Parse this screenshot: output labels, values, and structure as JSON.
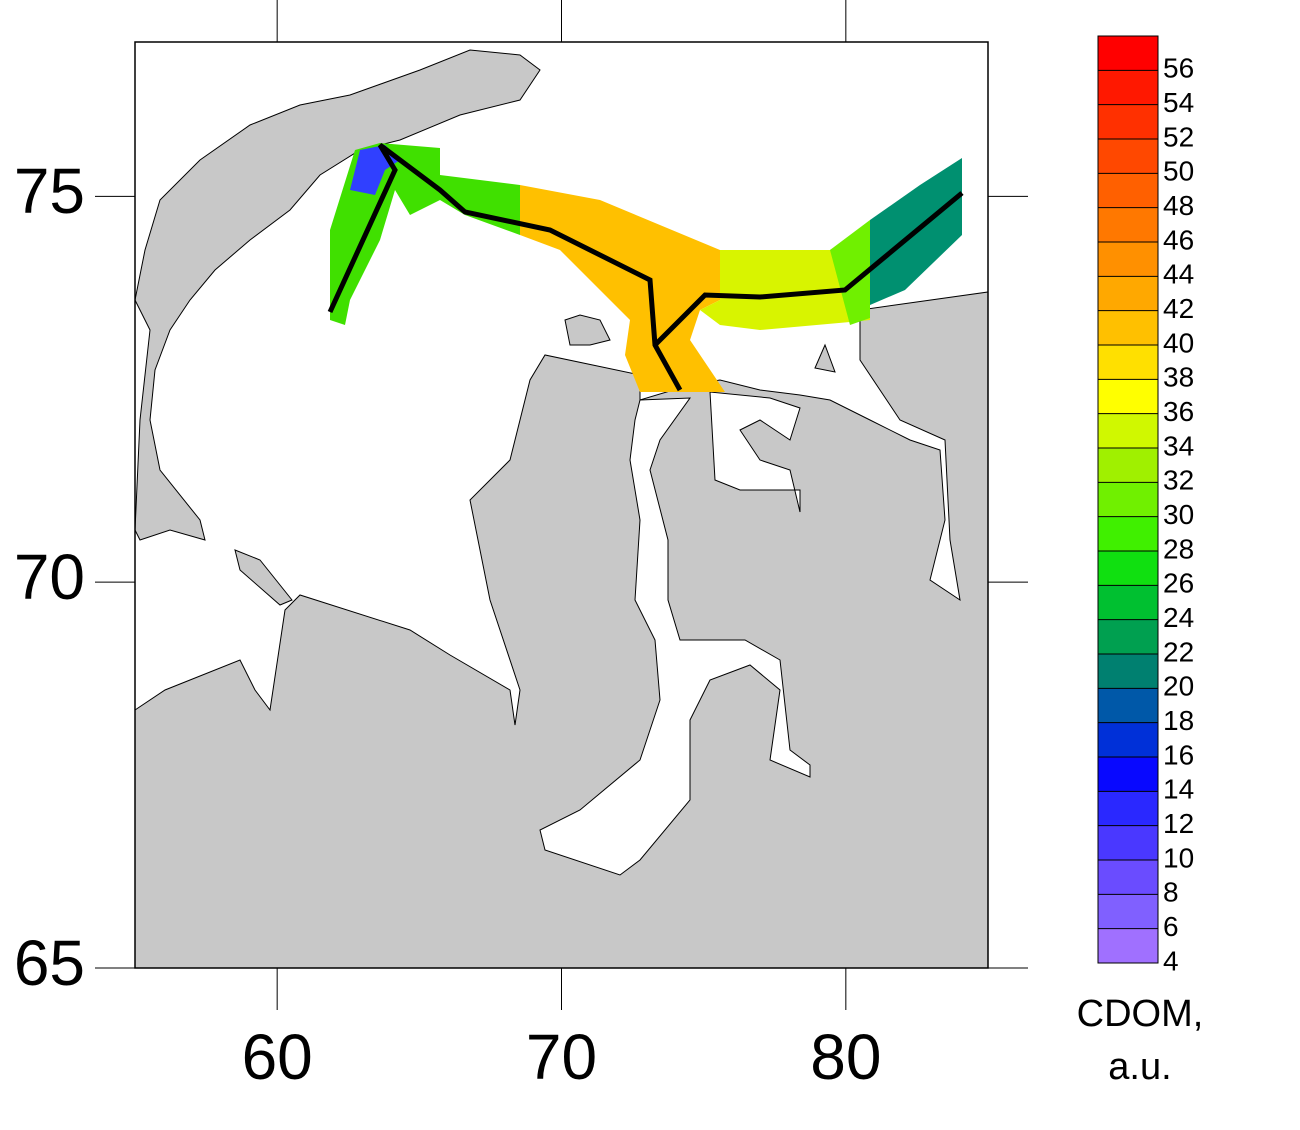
{
  "map": {
    "xlim": [
      55,
      85
    ],
    "ylim": [
      65,
      77
    ],
    "xticks": [
      60,
      70,
      80
    ],
    "yticks": [
      65,
      70,
      75
    ]
  },
  "colorbar": {
    "lim": [
      4,
      58
    ],
    "ticks": [
      4,
      6,
      8,
      10,
      12,
      14,
      16,
      18,
      20,
      22,
      24,
      26,
      28,
      30,
      32,
      34,
      36,
      38,
      40,
      42,
      44,
      46,
      48,
      50,
      52,
      54,
      56
    ],
    "colors": [
      "#a070ff",
      "#8060ff",
      "#6a4cff",
      "#4a38ff",
      "#2a28ff",
      "#0808ff",
      "#0030d8",
      "#0058a8",
      "#008070",
      "#00a050",
      "#00c030",
      "#10e010",
      "#40f000",
      "#70f000",
      "#a0f000",
      "#d0f800",
      "#ffff00",
      "#ffe000",
      "#ffc000",
      "#ffa800",
      "#ff9000",
      "#ff7800",
      "#ff6000",
      "#ff4800",
      "#ff3000",
      "#ff1800",
      "#ff0000"
    ],
    "label": [
      "CDOM,",
      "a.u."
    ]
  }
}
